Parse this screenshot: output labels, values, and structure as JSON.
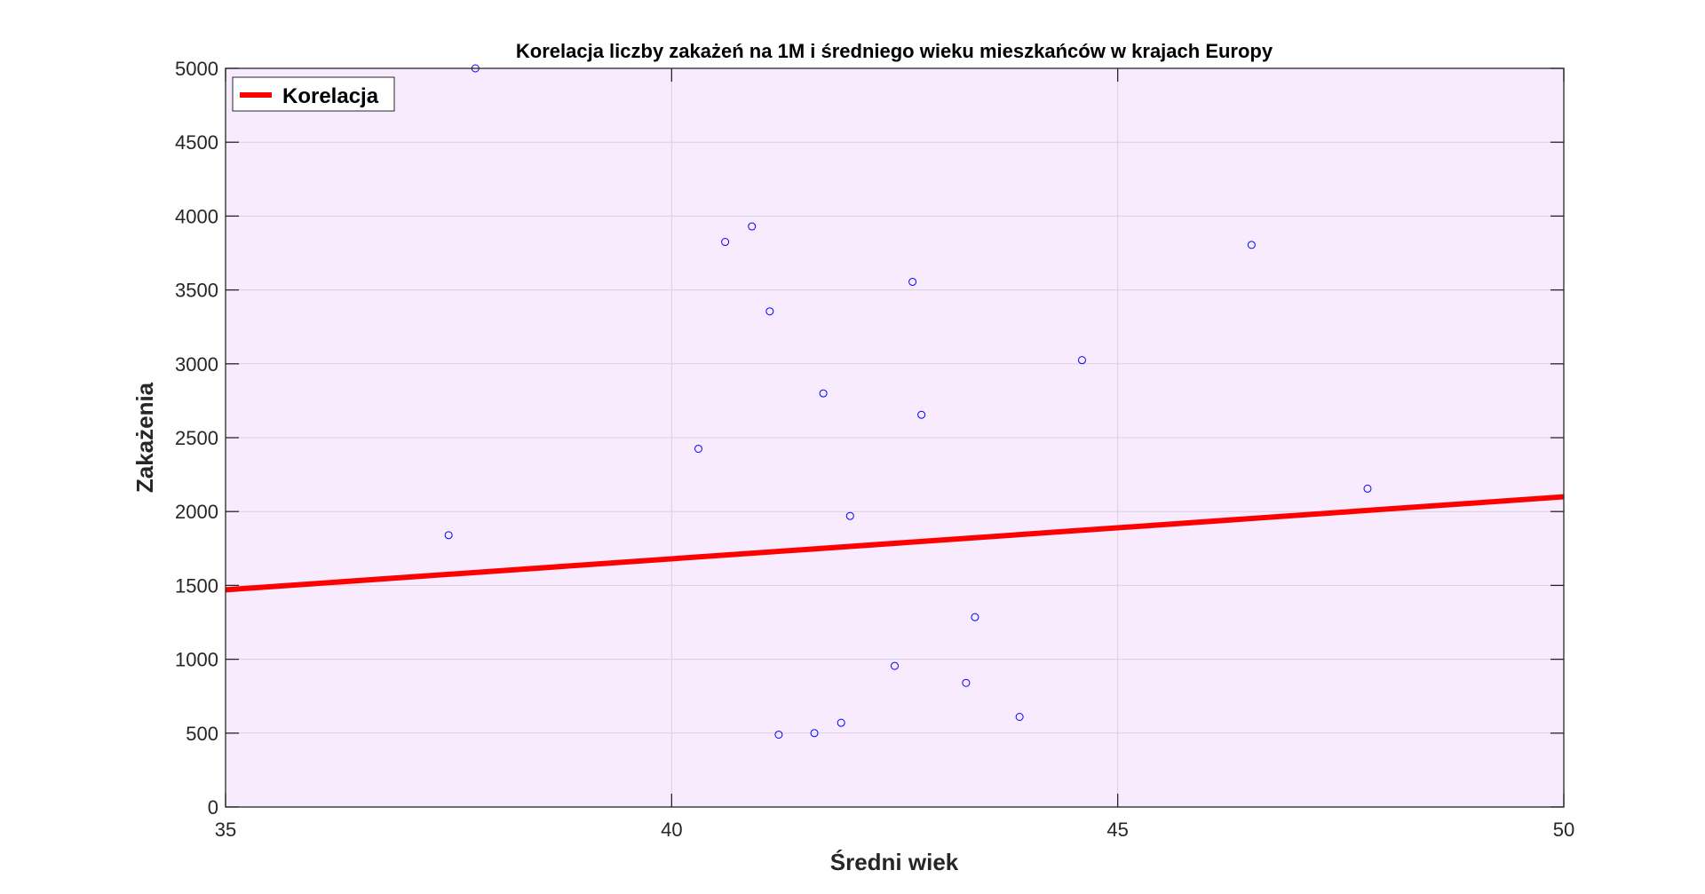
{
  "chart_data": {
    "type": "scatter",
    "title": "Korelacja liczby zakażeń na 1M i średniego wieku mieszkańców w krajach Europy",
    "xlabel": "Średni wiek",
    "ylabel": "Zakażenia",
    "xlim": [
      35,
      50
    ],
    "ylim": [
      0,
      5000
    ],
    "x_ticks": [
      35,
      40,
      45,
      50
    ],
    "y_ticks": [
      0,
      500,
      1000,
      1500,
      2000,
      2500,
      3000,
      3500,
      4000,
      4500,
      5000
    ],
    "grid": true,
    "legend_position": "top-left",
    "background_color": "#f7ebfd",
    "series": [
      {
        "type": "scatter",
        "marker": "circle",
        "color": "#0000ff",
        "points": [
          {
            "x": 37.5,
            "y": 1840
          },
          {
            "x": 37.8,
            "y": 5000
          },
          {
            "x": 40.3,
            "y": 2425
          },
          {
            "x": 40.6,
            "y": 3825
          },
          {
            "x": 40.9,
            "y": 3930
          },
          {
            "x": 41.1,
            "y": 3355
          },
          {
            "x": 41.2,
            "y": 490
          },
          {
            "x": 41.6,
            "y": 500
          },
          {
            "x": 41.7,
            "y": 2800
          },
          {
            "x": 41.9,
            "y": 570
          },
          {
            "x": 42.0,
            "y": 1970
          },
          {
            "x": 42.5,
            "y": 955
          },
          {
            "x": 42.7,
            "y": 3555
          },
          {
            "x": 42.8,
            "y": 2655
          },
          {
            "x": 43.3,
            "y": 840
          },
          {
            "x": 43.4,
            "y": 1285
          },
          {
            "x": 43.9,
            "y": 610
          },
          {
            "x": 44.6,
            "y": 3025
          },
          {
            "x": 46.5,
            "y": 3805
          },
          {
            "x": 47.8,
            "y": 2155
          }
        ]
      },
      {
        "name": "Korelacja",
        "type": "line",
        "color": "#ff0000",
        "x": [
          35,
          50
        ],
        "y": [
          1470,
          2100
        ]
      }
    ]
  }
}
